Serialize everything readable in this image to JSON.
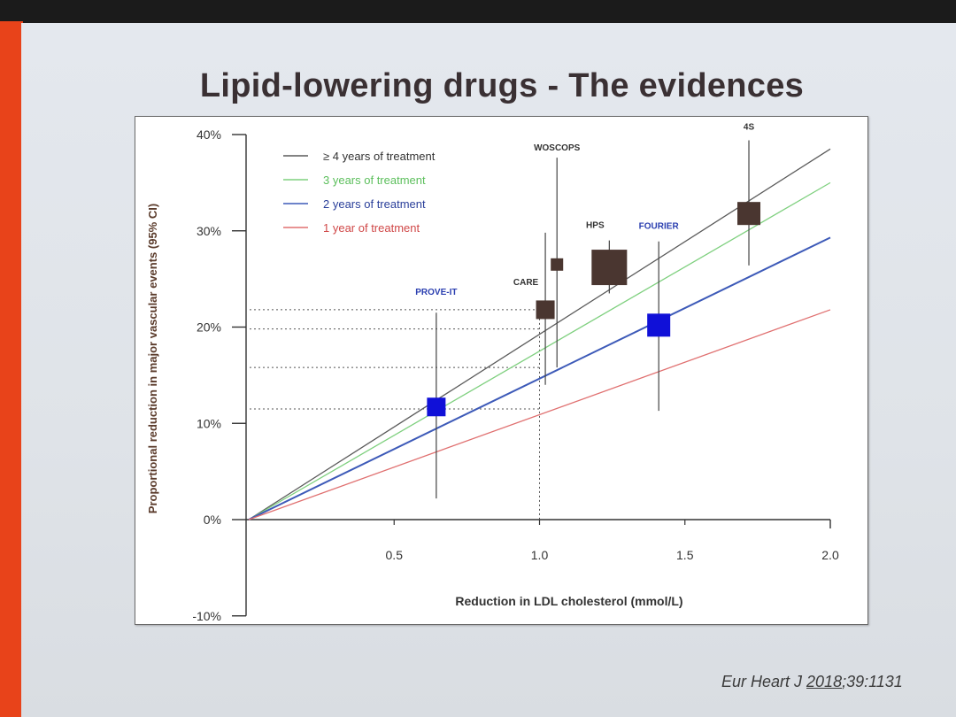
{
  "slide": {
    "title": "Lipid-lowering drugs - The evidences",
    "citation_prefix": "Eur Heart J ",
    "citation_year": "2018",
    "citation_suffix": ";39:1131"
  },
  "chart_data": {
    "type": "scatter",
    "xlabel": "Reduction in LDL cholesterol (mmol/L)",
    "ylabel": "Proportional reduction in major vascular events (95% CI)",
    "xlim": [
      0,
      2.0
    ],
    "ylim": [
      -10,
      40
    ],
    "x_ticks": [
      0.5,
      1.0,
      1.5,
      2.0
    ],
    "x_tick_labels": [
      "0.5",
      "1.0",
      "1.5",
      "2.0"
    ],
    "y_ticks": [
      -10,
      0,
      10,
      20,
      30,
      40
    ],
    "y_tick_labels": [
      "-10%",
      "0%",
      "10%",
      "20%",
      "30%",
      "40%"
    ],
    "legend_position": "top-left",
    "grid": false,
    "lines": [
      {
        "name": "≥ 4 years of treatment",
        "color": "#5a5a5a",
        "x": [
          0,
          2.0
        ],
        "y": [
          0,
          38.5
        ]
      },
      {
        "name": "3 years of treatment",
        "color": "#7fd07f",
        "x": [
          0,
          2.0
        ],
        "y": [
          0,
          35.0
        ]
      },
      {
        "name": "2 years of treatment",
        "color": "#3d5ab8",
        "x": [
          0,
          2.0
        ],
        "y": [
          0,
          29.3
        ]
      },
      {
        "name": "1 year of treatment",
        "color": "#e07070",
        "x": [
          0,
          2.0
        ],
        "y": [
          0,
          21.8
        ]
      }
    ],
    "studies": [
      {
        "name": "PROVE-IT",
        "label_color": "#2b3fb0",
        "color": "#1010d8",
        "x": 0.645,
        "y": 11.7,
        "ci_low": 2.2,
        "ci_high": 21.5,
        "size": "small"
      },
      {
        "name": "CARE",
        "label_color": "#333333",
        "color": "#4a3630",
        "x": 1.02,
        "y": 21.8,
        "ci_low": 14.0,
        "ci_high": 29.8,
        "size": "small"
      },
      {
        "name": "WOSCOPS",
        "label_color": "#333333",
        "color": "#4a3630",
        "x": 1.06,
        "y": 26.5,
        "ci_low": 15.8,
        "ci_high": 37.6,
        "size": "tiny"
      },
      {
        "name": "HPS",
        "label_color": "#333333",
        "color": "#4a3630",
        "x": 1.24,
        "y": 26.2,
        "ci_low": 23.5,
        "ci_high": 29.0,
        "size": "large"
      },
      {
        "name": "FOURIER",
        "label_color": "#2b3fb0",
        "color": "#1010d8",
        "x": 1.41,
        "y": 20.2,
        "ci_low": 11.3,
        "ci_high": 28.9,
        "size": "medium"
      },
      {
        "name": "4S",
        "label_color": "#333333",
        "color": "#4a3630",
        "x": 1.72,
        "y": 31.8,
        "ci_low": 26.4,
        "ci_high": 39.4,
        "size": "medium"
      }
    ],
    "reference_lines": [
      {
        "from": "y_axis",
        "x": 1.0,
        "y": 21.8
      },
      {
        "from": "y_axis",
        "x": 1.0,
        "y": 19.8
      },
      {
        "from": "y_axis",
        "x": 1.0,
        "y": 15.8
      },
      {
        "from": "y_axis",
        "x": 1.0,
        "y": 11.5
      }
    ]
  }
}
